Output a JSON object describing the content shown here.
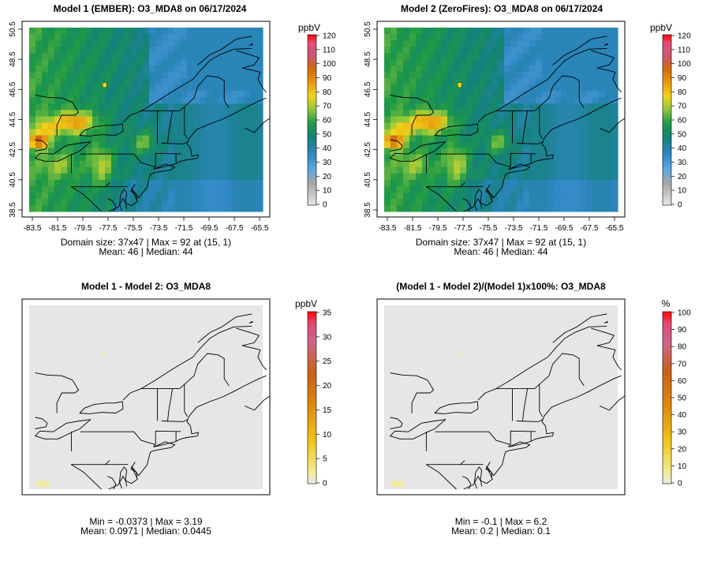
{
  "panels": [
    {
      "title": "Model 1 (EMBER): O3_MDA8 on 06/17/2024",
      "field": "ozone",
      "colorbar": {
        "unit": "ppbV",
        "ticks": [
          "0",
          "10",
          "20",
          "30",
          "40",
          "50",
          "60",
          "70",
          "80",
          "90",
          "100",
          "110",
          "120"
        ]
      },
      "xticks": [
        "-83.5",
        "-81.5",
        "-79.5",
        "-77.5",
        "-75.5",
        "-73.5",
        "-71.5",
        "-69.5",
        "-67.5",
        "-65.5"
      ],
      "yticks": [
        "38.5",
        "40.5",
        "42.5",
        "44.5",
        "46.5",
        "48.5",
        "50.5"
      ],
      "stats": [
        "Domain size: 37x47 | Max = 92 at (15, 1)",
        "Mean: 46 |  Median: 44"
      ]
    },
    {
      "title": "Model 2 (ZeroFires): O3_MDA8 on 06/17/2024",
      "field": "ozone",
      "colorbar": {
        "unit": "ppbV",
        "ticks": [
          "0",
          "10",
          "20",
          "30",
          "40",
          "50",
          "60",
          "70",
          "80",
          "90",
          "100",
          "110",
          "120"
        ]
      },
      "xticks": [
        "-83.5",
        "-81.5",
        "-79.5",
        "-77.5",
        "-75.5",
        "-73.5",
        "-71.5",
        "-69.5",
        "-67.5",
        "-65.5"
      ],
      "yticks": [
        "38.5",
        "40.5",
        "42.5",
        "44.5",
        "46.5",
        "48.5",
        "50.5"
      ],
      "stats": [
        "Domain size: 37x47 | Max = 92 at (15, 1)",
        "Mean: 46 |  Median: 44"
      ]
    },
    {
      "title": "Model 1 - Model 2: O3_MDA8",
      "field": "diff",
      "colorbar": {
        "unit": "ppbV",
        "ticks": [
          "0",
          "5",
          "10",
          "15",
          "20",
          "25",
          "30",
          "35"
        ]
      },
      "xticks": [],
      "yticks": [],
      "stats": [
        "Min = -0.0373 | Max = 3.19",
        "Mean: 0.0971 |  Median: 0.0445"
      ]
    },
    {
      "title": "(Model 1 - Model 2)/(Model 1)x100%: O3_MDA8",
      "field": "pct",
      "colorbar": {
        "unit": "%",
        "ticks": [
          "0",
          "10",
          "20",
          "30",
          "40",
          "50",
          "60",
          "70",
          "80",
          "90",
          "100"
        ]
      },
      "xticks": [],
      "yticks": [],
      "stats": [
        "Min = -0.1 | Max = 6.2",
        "Mean: 0.2 |  Median: 0.1"
      ]
    }
  ]
}
